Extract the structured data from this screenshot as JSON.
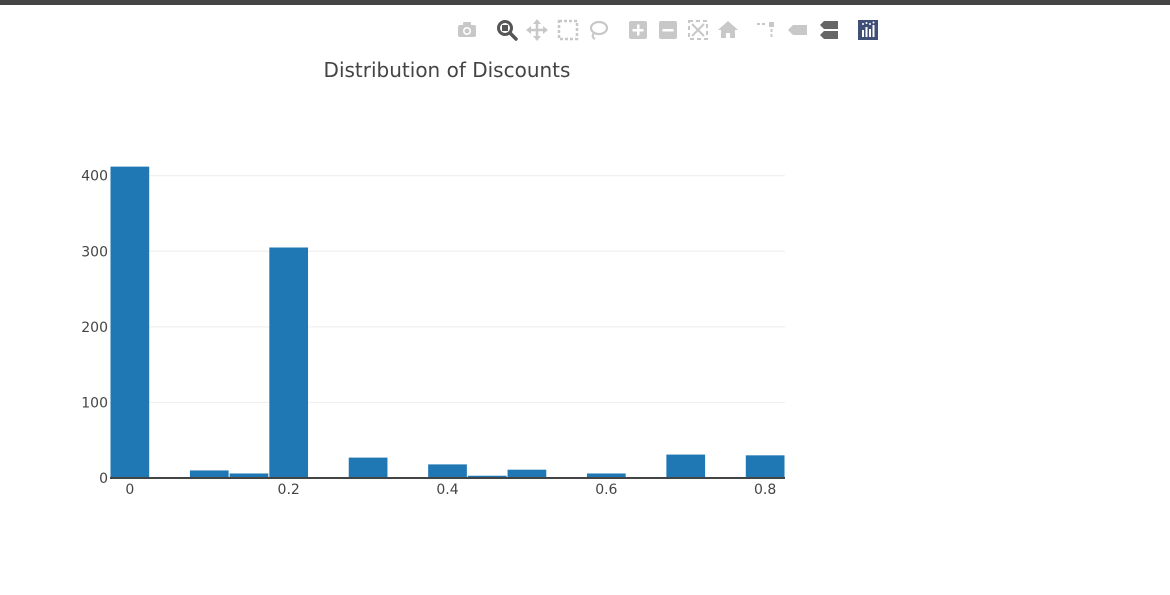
{
  "modebar": {
    "buttons": [
      {
        "name": "camera-icon",
        "title": "Download plot as a png"
      },
      {
        "name": "zoom-icon",
        "title": "Zoom"
      },
      {
        "name": "pan-icon",
        "title": "Pan"
      },
      {
        "name": "box-select-icon",
        "title": "Box Select"
      },
      {
        "name": "lasso-select-icon",
        "title": "Lasso Select"
      },
      {
        "name": "zoom-in-icon",
        "title": "Zoom in"
      },
      {
        "name": "zoom-out-icon",
        "title": "Zoom out"
      },
      {
        "name": "autoscale-icon",
        "title": "Autoscale"
      },
      {
        "name": "reset-axes-icon",
        "title": "Reset axes"
      },
      {
        "name": "spike-lines-icon",
        "title": "Toggle Spike Lines"
      },
      {
        "name": "hover-closest-icon",
        "title": "Show closest data on hover"
      },
      {
        "name": "hover-compare-icon",
        "title": "Compare data on hover"
      },
      {
        "name": "plotly-logo-icon",
        "title": "Produced with Plotly"
      }
    ]
  },
  "chart_data": {
    "type": "bar",
    "title": "Distribution of Discounts",
    "xlabel": "",
    "ylabel": "",
    "bar_color": "#1f77b4",
    "bins": [
      {
        "x0": -0.025,
        "x1": 0.025,
        "count": 412
      },
      {
        "x0": 0.075,
        "x1": 0.125,
        "count": 10
      },
      {
        "x0": 0.125,
        "x1": 0.175,
        "count": 6
      },
      {
        "x0": 0.175,
        "x1": 0.225,
        "count": 305
      },
      {
        "x0": 0.275,
        "x1": 0.325,
        "count": 27
      },
      {
        "x0": 0.375,
        "x1": 0.425,
        "count": 18
      },
      {
        "x0": 0.425,
        "x1": 0.475,
        "count": 3
      },
      {
        "x0": 0.475,
        "x1": 0.525,
        "count": 11
      },
      {
        "x0": 0.575,
        "x1": 0.625,
        "count": 6
      },
      {
        "x0": 0.675,
        "x1": 0.725,
        "count": 31
      },
      {
        "x0": 0.775,
        "x1": 0.825,
        "count": 30
      }
    ],
    "xlim": [
      -0.025,
      0.825
    ],
    "ylim": [
      0,
      434
    ],
    "xticks": [
      0,
      0.2,
      0.4,
      0.6,
      0.8
    ],
    "xtick_labels": [
      "0",
      "0.2",
      "0.4",
      "0.6",
      "0.8"
    ],
    "yticks": [
      0,
      100,
      200,
      300,
      400
    ],
    "ytick_labels": [
      "0",
      "100",
      "200",
      "300",
      "400"
    ],
    "grid": true,
    "legend": false
  }
}
